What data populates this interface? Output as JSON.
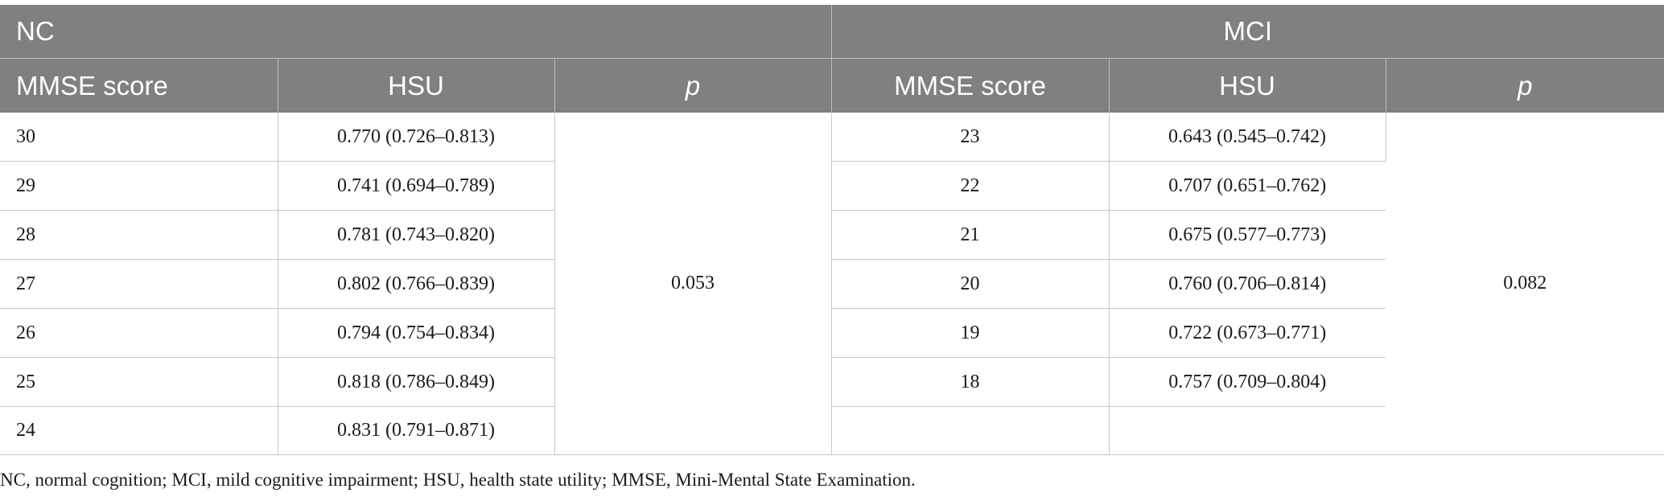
{
  "table": {
    "groups": {
      "nc": "NC",
      "mci": "MCI"
    },
    "columns": {
      "nc_mmse": "MMSE score",
      "nc_hsu": "HSU",
      "nc_p": "p",
      "mci_mmse": "MMSE score",
      "mci_hsu": "HSU",
      "mci_p": "p"
    },
    "nc_p_value": "0.053",
    "mci_p_value": "0.082",
    "rows": [
      {
        "nc_mmse": "30",
        "nc_hsu": "0.770 (0.726–0.813)",
        "mci_mmse": "23",
        "mci_hsu": "0.643 (0.545–0.742)"
      },
      {
        "nc_mmse": "29",
        "nc_hsu": "0.741 (0.694–0.789)",
        "mci_mmse": "22",
        "mci_hsu": "0.707 (0.651–0.762)"
      },
      {
        "nc_mmse": "28",
        "nc_hsu": "0.781 (0.743–0.820)",
        "mci_mmse": "21",
        "mci_hsu": "0.675 (0.577–0.773)"
      },
      {
        "nc_mmse": "27",
        "nc_hsu": "0.802 (0.766–0.839)",
        "mci_mmse": "20",
        "mci_hsu": "0.760 (0.706–0.814)"
      },
      {
        "nc_mmse": "26",
        "nc_hsu": "0.794 (0.754–0.834)",
        "mci_mmse": "19",
        "mci_hsu": "0.722 (0.673–0.771)"
      },
      {
        "nc_mmse": "25",
        "nc_hsu": "0.818 (0.786–0.849)",
        "mci_mmse": "18",
        "mci_hsu": "0.757 (0.709–0.804)"
      },
      {
        "nc_mmse": "24",
        "nc_hsu": "0.831 (0.791–0.871)",
        "mci_mmse": "",
        "mci_hsu": ""
      }
    ]
  },
  "footnote": "NC, normal cognition; MCI, mild cognitive impairment; HSU, health state utility; MMSE, Mini-Mental State Examination.",
  "colors": {
    "header_bg": "#808080",
    "header_text": "#ffffff",
    "border": "#c8c8c8"
  }
}
